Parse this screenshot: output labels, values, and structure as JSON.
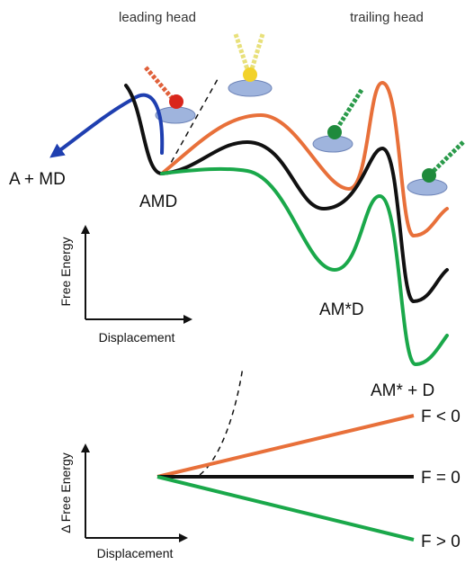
{
  "top_panel": {
    "head_labels": [
      "leading head",
      "trailing head"
    ],
    "state_labels": [
      "A + MD",
      "AMD",
      "AM*D",
      "AM* + D"
    ],
    "y_axis_label": "Free Energy",
    "x_axis_label": "Displacement"
  },
  "bottom_panel": {
    "y_axis_label": "Δ Free Energy",
    "x_axis_label": "Displacement",
    "line_labels": [
      "F < 0",
      "F = 0",
      "F > 0"
    ]
  }
}
